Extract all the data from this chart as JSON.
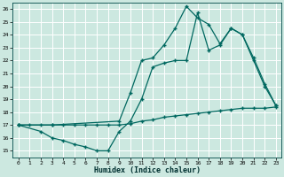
{
  "xlabel": "Humidex (Indice chaleur)",
  "bg_color": "#cce8e0",
  "grid_color": "#b0d8ce",
  "line_color": "#006860",
  "xlim": [
    -0.5,
    23.5
  ],
  "ylim": [
    14.5,
    26.5
  ],
  "xticks": [
    0,
    1,
    2,
    3,
    4,
    5,
    6,
    7,
    8,
    9,
    10,
    11,
    12,
    13,
    14,
    15,
    16,
    17,
    18,
    19,
    20,
    21,
    22,
    23
  ],
  "yticks": [
    15,
    16,
    17,
    18,
    19,
    20,
    21,
    22,
    23,
    24,
    25,
    26
  ],
  "line1_x": [
    0,
    1,
    2,
    3,
    4,
    5,
    6,
    7,
    8,
    9,
    10,
    11,
    12,
    13,
    14,
    15,
    16,
    17,
    18,
    19,
    20,
    21,
    22,
    23
  ],
  "line1_y": [
    17.0,
    17.0,
    17.0,
    17.0,
    17.0,
    17.0,
    17.0,
    17.0,
    17.0,
    17.0,
    17.1,
    17.3,
    17.4,
    17.6,
    17.7,
    17.8,
    17.9,
    18.0,
    18.1,
    18.2,
    18.3,
    18.3,
    18.3,
    18.4
  ],
  "line2_x": [
    0,
    2,
    3,
    4,
    5,
    6,
    7,
    8,
    9,
    10,
    11,
    12,
    13,
    14,
    15,
    16,
    17,
    18,
    19,
    20,
    21,
    22,
    23
  ],
  "line2_y": [
    17.0,
    16.5,
    16.0,
    15.8,
    15.5,
    15.3,
    15.0,
    15.0,
    16.5,
    17.3,
    19.0,
    21.5,
    21.8,
    22.0,
    22.0,
    25.7,
    22.8,
    23.2,
    24.5,
    24.0,
    22.0,
    20.0,
    18.5
  ],
  "line3_x": [
    0,
    3,
    9,
    10,
    11,
    12,
    13,
    14,
    15,
    16,
    17,
    18,
    19,
    20,
    21,
    22,
    23
  ],
  "line3_y": [
    17.0,
    17.0,
    17.3,
    19.5,
    22.0,
    22.2,
    23.2,
    24.5,
    26.2,
    25.3,
    24.8,
    23.3,
    24.5,
    24.0,
    22.2,
    20.2,
    18.5
  ]
}
